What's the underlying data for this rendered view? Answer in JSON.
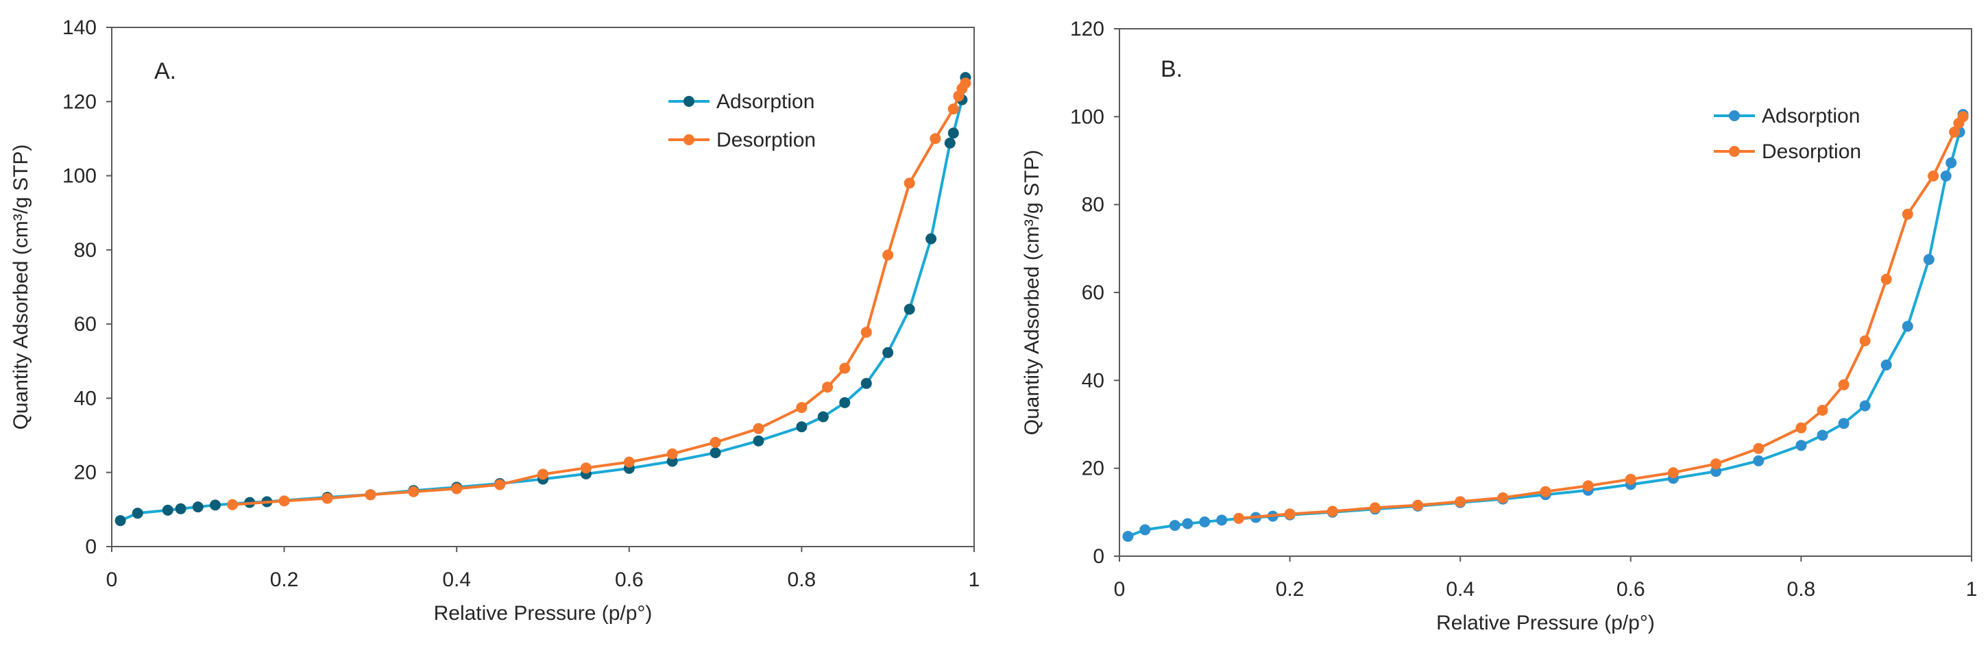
{
  "chart_data": [
    {
      "type": "line",
      "panel_label": "A.",
      "xlabel": "Relative Pressure (p/p°)",
      "ylabel": "Quantity Adsorbed (cm³/g STP)",
      "xlim": [
        0,
        1
      ],
      "ylim": [
        0,
        140
      ],
      "xticks": [
        0,
        0.2,
        0.4,
        0.6,
        0.8,
        1
      ],
      "xtick_labels": [
        "0",
        "0.2",
        "0.4",
        "0.6",
        "0.8",
        "1"
      ],
      "yticks": [
        0,
        20,
        40,
        60,
        80,
        100,
        120,
        140
      ],
      "ytick_labels": [
        "0",
        "20",
        "40",
        "60",
        "80",
        "100",
        "120",
        "140"
      ],
      "grid": false,
      "legend_position": "top-right",
      "series": [
        {
          "name": "Adsorption",
          "color": "#1aa9d6",
          "marker_color": "#0b5e78",
          "x": [
            0.01,
            0.03,
            0.065,
            0.08,
            0.1,
            0.12,
            0.16,
            0.18,
            0.25,
            0.3,
            0.35,
            0.4,
            0.45,
            0.5,
            0.55,
            0.6,
            0.65,
            0.7,
            0.75,
            0.8,
            0.825,
            0.85,
            0.875,
            0.9,
            0.925,
            0.95,
            0.972,
            0.976,
            0.986,
            0.99
          ],
          "y": [
            7,
            9,
            9.8,
            10.2,
            10.7,
            11.2,
            11.9,
            12.1,
            13.3,
            14,
            15.1,
            16,
            17,
            18.2,
            19.6,
            21.1,
            23,
            25.3,
            28.5,
            32.3,
            35,
            38.8,
            44,
            52.3,
            64,
            83,
            108.8,
            111.5,
            120.5,
            126.5
          ]
        },
        {
          "name": "Desorption",
          "color": "#f5782d",
          "marker_color": "#f5782d",
          "x": [
            0.14,
            0.2,
            0.25,
            0.3,
            0.35,
            0.4,
            0.45,
            0.5,
            0.55,
            0.6,
            0.65,
            0.7,
            0.75,
            0.8,
            0.83,
            0.85,
            0.875,
            0.9,
            0.925,
            0.955,
            0.976,
            0.982,
            0.986,
            0.99
          ],
          "y": [
            11.3,
            12.3,
            13,
            14,
            14.8,
            15.6,
            16.7,
            19.5,
            21.2,
            22.8,
            25,
            28.1,
            31.8,
            37.5,
            43,
            48.1,
            57.8,
            78.6,
            98,
            110,
            118,
            121.5,
            123.5,
            125
          ]
        }
      ]
    },
    {
      "type": "line",
      "panel_label": "B.",
      "xlabel": "Relative Pressure (p/p°)",
      "ylabel": "Quantity Adsorbed (cm³/g STP)",
      "xlim": [
        0,
        1
      ],
      "ylim": [
        0,
        120
      ],
      "xticks": [
        0,
        0.2,
        0.4,
        0.6,
        0.8,
        1
      ],
      "xtick_labels": [
        "0",
        "0.2",
        "0.4",
        "0.6",
        "0.8",
        "1"
      ],
      "yticks": [
        0,
        20,
        40,
        60,
        80,
        100,
        120
      ],
      "ytick_labels": [
        "0",
        "20",
        "40",
        "60",
        "80",
        "100",
        "120"
      ],
      "grid": false,
      "legend_position": "top-right",
      "series": [
        {
          "name": "Adsorption",
          "color": "#1aa9d6",
          "marker_color": "#2e8fcf",
          "x": [
            0.01,
            0.03,
            0.065,
            0.08,
            0.1,
            0.12,
            0.16,
            0.18,
            0.2,
            0.25,
            0.3,
            0.35,
            0.4,
            0.45,
            0.5,
            0.55,
            0.6,
            0.65,
            0.7,
            0.75,
            0.8,
            0.825,
            0.85,
            0.875,
            0.9,
            0.925,
            0.95,
            0.97,
            0.976,
            0.986,
            0.99
          ],
          "y": [
            4.5,
            6,
            7,
            7.4,
            7.8,
            8.2,
            8.8,
            9.1,
            9.4,
            10,
            10.7,
            11.4,
            12.2,
            13,
            14,
            15,
            16.3,
            17.7,
            19.3,
            21.7,
            25.2,
            27.5,
            30.2,
            34.2,
            43.5,
            52.3,
            67.5,
            86.5,
            89.5,
            96.5,
            100.5
          ]
        },
        {
          "name": "Desorption",
          "color": "#f5782d",
          "marker_color": "#f5782d",
          "x": [
            0.14,
            0.2,
            0.25,
            0.3,
            0.35,
            0.4,
            0.45,
            0.5,
            0.55,
            0.6,
            0.65,
            0.7,
            0.75,
            0.8,
            0.825,
            0.85,
            0.875,
            0.9,
            0.925,
            0.955,
            0.98,
            0.985,
            0.99
          ],
          "y": [
            8.6,
            9.6,
            10.2,
            11,
            11.6,
            12.4,
            13.3,
            14.7,
            16,
            17.5,
            19,
            21,
            24.5,
            29.2,
            33.2,
            39,
            49,
            63,
            77.8,
            86.5,
            96.5,
            98.5,
            100
          ]
        }
      ]
    }
  ]
}
